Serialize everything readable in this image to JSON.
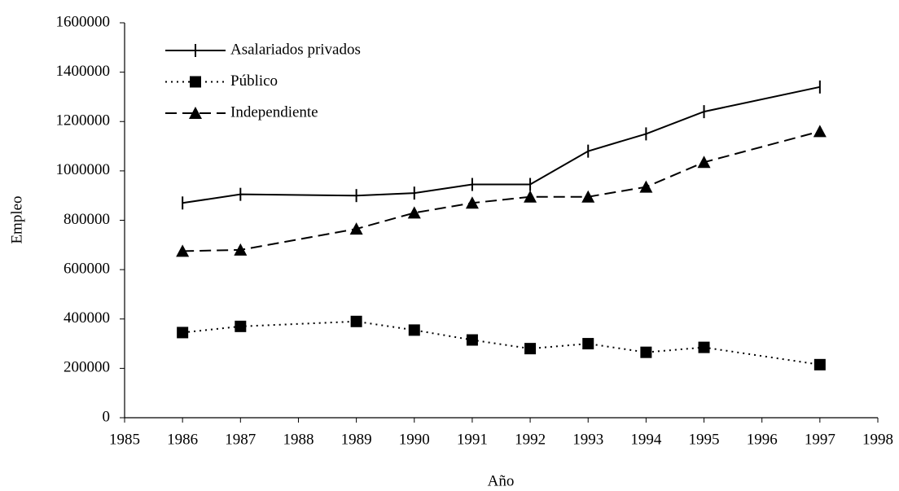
{
  "chart_data": {
    "type": "line",
    "x": [
      1986,
      1987,
      1989,
      1990,
      1991,
      1992,
      1993,
      1994,
      1995,
      1997
    ],
    "series": [
      {
        "name": "Asalariados privados",
        "color": "#000000",
        "dash": "solid",
        "marker": "tick",
        "values": [
          870000,
          905000,
          900000,
          910000,
          945000,
          945000,
          1080000,
          1150000,
          1240000,
          1340000
        ]
      },
      {
        "name": "Público",
        "color": "#000000",
        "dash": "dotted",
        "marker": "square",
        "values": [
          345000,
          370000,
          390000,
          355000,
          315000,
          280000,
          300000,
          265000,
          285000,
          215000
        ]
      },
      {
        "name": "Independiente",
        "color": "#000000",
        "dash": "dashed",
        "marker": "triangle",
        "values": [
          675000,
          680000,
          765000,
          830000,
          870000,
          895000,
          895000,
          935000,
          1035000,
          1160000
        ]
      }
    ],
    "xlabel": "Año",
    "ylabel": "Empleo",
    "xlim": [
      1985,
      1998
    ],
    "xticks": [
      1985,
      1986,
      1987,
      1988,
      1989,
      1990,
      1991,
      1992,
      1993,
      1994,
      1995,
      1996,
      1997,
      1998
    ],
    "ylim": [
      0,
      1600000
    ],
    "yticks": [
      0,
      200000,
      400000,
      600000,
      800000,
      1000000,
      1200000,
      1400000,
      1600000
    ],
    "grid": false,
    "legend": "upper left"
  }
}
